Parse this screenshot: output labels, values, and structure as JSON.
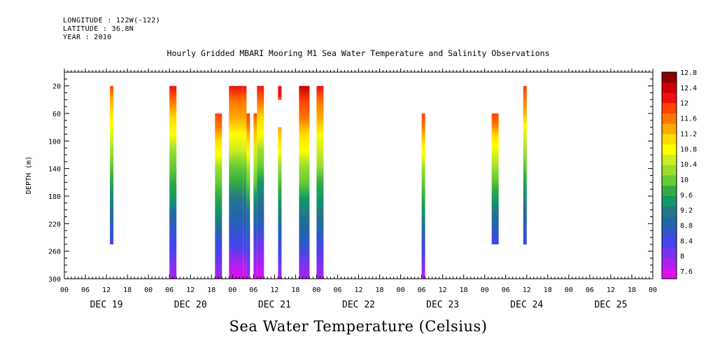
{
  "header": {
    "longitude": "LONGITUDE : 122W(-122)",
    "latitude": "LATITUDE : 36.8N",
    "year": "YEAR : 2010"
  },
  "chart_data": {
    "type": "heatmap",
    "title": "Hourly Gridded MBARI Mooring M1 Sea Water Temperature and Salinity Observations",
    "footer_title": "Sea Water Temperature (Celsius)",
    "ylabel": "DEPTH (m)",
    "y_reversed": true,
    "ylim": [
      0,
      300
    ],
    "y_ticks": [
      20,
      60,
      100,
      140,
      180,
      220,
      260,
      300
    ],
    "x_hour_ticks": [
      "00",
      "06",
      "12",
      "18",
      "00",
      "06",
      "12",
      "18",
      "00",
      "06",
      "12",
      "18",
      "00",
      "06",
      "12",
      "18",
      "00",
      "06",
      "12",
      "18",
      "00",
      "06",
      "12",
      "18",
      "00",
      "06",
      "12",
      "18",
      "00"
    ],
    "x_day_labels": [
      "DEC 19",
      "DEC 20",
      "DEC 21",
      "DEC 22",
      "DEC 23",
      "DEC 24",
      "DEC 25"
    ],
    "colorbar": {
      "levels": [
        "12.8",
        "12.4",
        "12",
        "11.6",
        "11.2",
        "10.8",
        "10.4",
        "10",
        "9.6",
        "9.2",
        "8.8",
        "8.4",
        "8",
        "7.6"
      ],
      "colors": [
        "#8b0000",
        "#cc0000",
        "#ee1111",
        "#ff4400",
        "#ff7700",
        "#ffaa00",
        "#ffdd00",
        "#ffff00",
        "#ccee22",
        "#99dd33",
        "#66cc33",
        "#33aa44",
        "#119966",
        "#227788",
        "#2266aa",
        "#3355cc",
        "#4444ee",
        "#7733ee",
        "#aa22ee",
        "#dd11ee"
      ]
    },
    "columns": [
      {
        "hour": 13,
        "width_h": 1,
        "top_depth": 20,
        "bottom_depth": 250,
        "top_temp": 11.8,
        "bottom_temp": 8.6
      },
      {
        "hour": 30,
        "width_h": 2,
        "top_depth": 20,
        "bottom_depth": 300,
        "top_temp": 12.1,
        "bottom_temp": 7.9
      },
      {
        "hour": 43,
        "width_h": 2,
        "top_depth": 60,
        "bottom_depth": 300,
        "top_temp": 12.0,
        "bottom_temp": 8.0
      },
      {
        "hour": 47,
        "width_h": 4,
        "top_depth": 20,
        "bottom_depth": 300,
        "top_temp": 12.2,
        "bottom_temp": 7.8
      },
      {
        "hour": 51,
        "width_h": 1,
        "top_depth": 20,
        "bottom_depth": 300,
        "top_temp": 12.2,
        "bottom_temp": 7.8
      },
      {
        "hour": 52,
        "width_h": 1,
        "top_depth": 60,
        "bottom_depth": 300,
        "top_temp": 12.0,
        "bottom_temp": 7.9
      },
      {
        "hour": 54,
        "width_h": 1,
        "top_depth": 60,
        "bottom_depth": 300,
        "top_temp": 12.0,
        "bottom_temp": 7.7
      },
      {
        "hour": 55,
        "width_h": 2,
        "top_depth": 20,
        "bottom_depth": 300,
        "top_temp": 12.1,
        "bottom_temp": 7.7
      },
      {
        "hour": 61,
        "width_h": 1,
        "top_depth": 20,
        "bottom_depth": 40,
        "top_temp": 12.1,
        "bottom_temp": 12.0
      },
      {
        "hour": 61,
        "width_h": 1,
        "top_depth": 80,
        "bottom_depth": 300,
        "top_temp": 11.5,
        "bottom_temp": 8.0
      },
      {
        "hour": 67,
        "width_h": 3,
        "top_depth": 20,
        "bottom_depth": 300,
        "top_temp": 12.5,
        "bottom_temp": 8.0
      },
      {
        "hour": 72,
        "width_h": 2,
        "top_depth": 20,
        "bottom_depth": 300,
        "top_temp": 12.2,
        "bottom_temp": 8.0
      },
      {
        "hour": 102,
        "width_h": 1,
        "top_depth": 60,
        "bottom_depth": 300,
        "top_temp": 12.0,
        "bottom_temp": 8.0
      },
      {
        "hour": 122,
        "width_h": 2,
        "top_depth": 60,
        "bottom_depth": 250,
        "top_temp": 11.9,
        "bottom_temp": 8.6
      },
      {
        "hour": 131,
        "width_h": 1,
        "top_depth": 20,
        "bottom_depth": 250,
        "top_temp": 12.0,
        "bottom_temp": 8.6
      }
    ]
  }
}
